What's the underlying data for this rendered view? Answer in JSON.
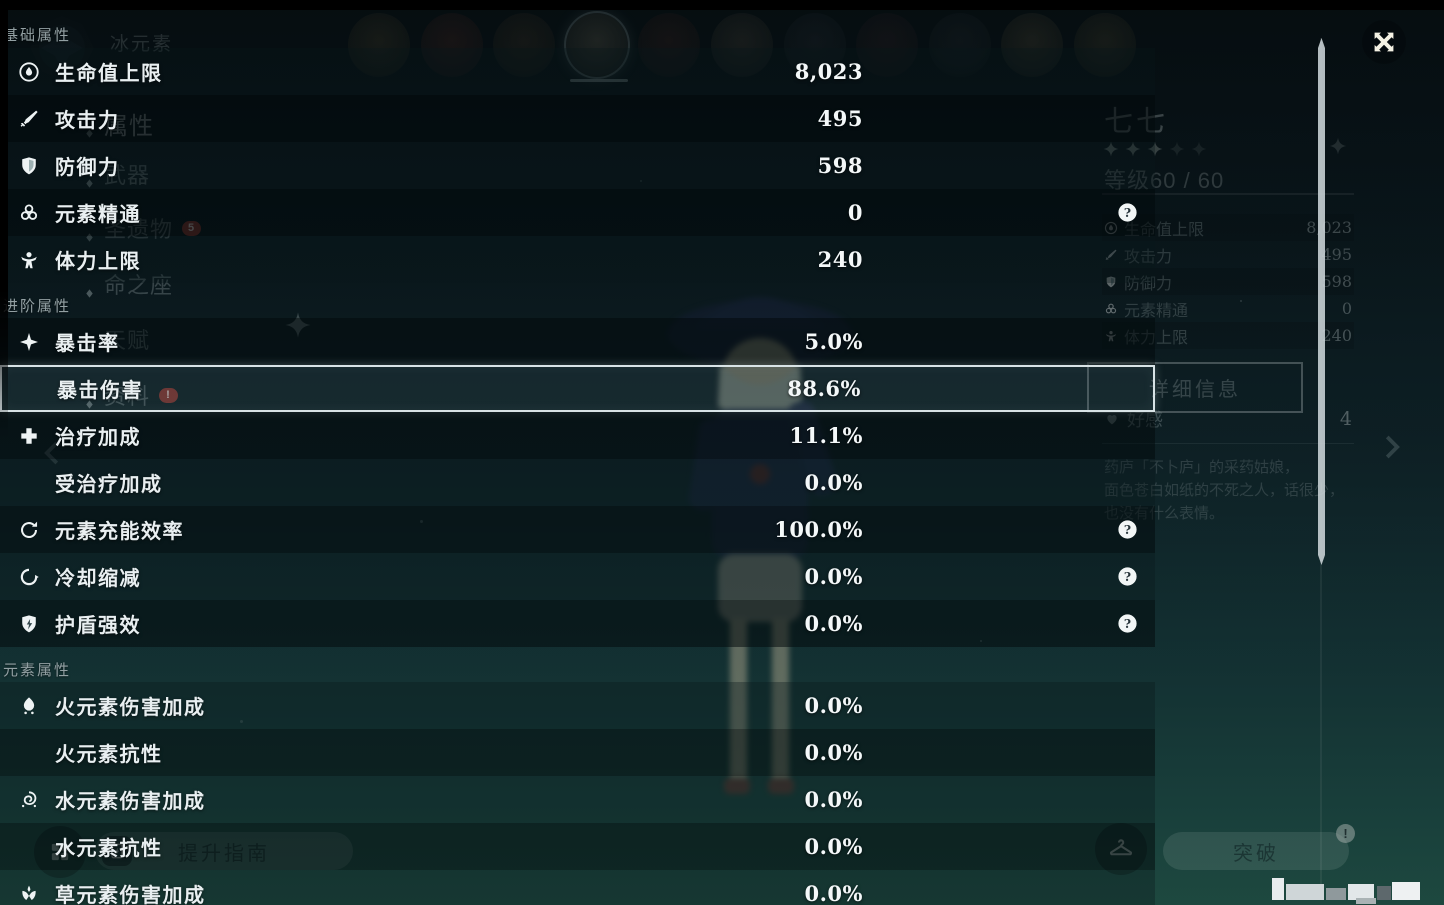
{
  "colors": {
    "highlight_border": "#d8e3e6",
    "badge_red": "#c2453a",
    "panel_text": "#e9eff1",
    "value_text": "#f4f8f9",
    "header_text": "#93a0a3",
    "scrollbar": "#ccd5d8"
  },
  "element_label": "冰元素",
  "stats_panel": {
    "sections": [
      {
        "title": "基础属性",
        "rows": [
          {
            "icon": "hp-icon",
            "label": "生命值上限",
            "value": "8,023"
          },
          {
            "icon": "attack-icon",
            "label": "攻击力",
            "value": "495"
          },
          {
            "icon": "defense-icon",
            "label": "防御力",
            "value": "598"
          },
          {
            "icon": "elemental-mastery-icon",
            "label": "元素精通",
            "value": "0",
            "help": true
          },
          {
            "icon": "stamina-icon",
            "label": "体力上限",
            "value": "240"
          }
        ]
      },
      {
        "title": "进阶属性",
        "rows": [
          {
            "icon": "crit-rate-icon",
            "label": "暴击率",
            "value": "5.0%"
          },
          {
            "icon": null,
            "label": "暴击伤害",
            "value": "88.6%",
            "highlighted": true
          },
          {
            "icon": "healing-bonus-icon",
            "label": "治疗加成",
            "value": "11.1%"
          },
          {
            "icon": null,
            "label": "受治疗加成",
            "value": "0.0%"
          },
          {
            "icon": "energy-recharge-icon",
            "label": "元素充能效率",
            "value": "100.0%",
            "help": true
          },
          {
            "icon": "cooldown-icon",
            "label": "冷却缩减",
            "value": "0.0%",
            "help": true
          },
          {
            "icon": "shield-strength-icon",
            "label": "护盾强效",
            "value": "0.0%",
            "help": true
          }
        ]
      },
      {
        "title": "元素属性",
        "rows": [
          {
            "icon": "pyro-icon",
            "label": "火元素伤害加成",
            "value": "0.0%"
          },
          {
            "icon": null,
            "label": "火元素抗性",
            "value": "0.0%"
          },
          {
            "icon": "hydro-icon",
            "label": "水元素伤害加成",
            "value": "0.0%"
          },
          {
            "icon": null,
            "label": "水元素抗性",
            "value": "0.0%"
          },
          {
            "icon": "dendro-icon",
            "label": "草元素伤害加成",
            "value": "0.0%"
          }
        ]
      }
    ]
  },
  "sidebar": {
    "items": [
      {
        "label": "属性",
        "selected": true
      },
      {
        "label": "武器"
      },
      {
        "label": "圣遗物",
        "badge": "5"
      },
      {
        "label": "命之座"
      },
      {
        "label": "天赋"
      },
      {
        "label": "资料",
        "badge": "!"
      }
    ]
  },
  "character_info": {
    "name": "七七",
    "stars": 5,
    "level_label": "等级60 / 60",
    "stats": [
      {
        "icon": "hp-icon",
        "label": "生命值上限",
        "value": "8,023"
      },
      {
        "icon": "attack-icon",
        "label": "攻击力",
        "value": "495"
      },
      {
        "icon": "defense-icon",
        "label": "防御力",
        "value": "598"
      },
      {
        "icon": "elemental-mastery-icon",
        "label": "元素精通",
        "value": "0"
      },
      {
        "icon": "stamina-icon",
        "label": "体力上限",
        "value": "240"
      }
    ],
    "details_button": "详细信息",
    "friendship": {
      "label": "好感",
      "value": "4"
    },
    "description_lines": [
      "药庐「不卜庐」的采药姑娘，",
      "面色苍白如纸的不死之人，话很少，",
      "也没有什么表情。"
    ]
  },
  "footer": {
    "guide_button": "提升指南",
    "ascend_button": "突破",
    "ascend_badge": "!"
  },
  "avatars": {
    "selected_index": 3,
    "tints": [
      "#6b5a3a",
      "#70352c",
      "#5f4a33",
      "#9a9078",
      "#5c2f28",
      "#6e6152",
      "#3a3f4a",
      "#4a2e33",
      "#343b42",
      "#7a6a4c",
      "#6b5f3f"
    ]
  }
}
